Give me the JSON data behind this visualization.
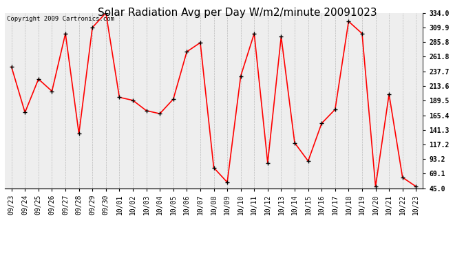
{
  "title": "Solar Radiation Avg per Day W/m2/minute 20091023",
  "copyright_text": "Copyright 2009 Cartronics.com",
  "labels": [
    "09/23",
    "09/24",
    "09/25",
    "09/26",
    "09/27",
    "09/28",
    "09/29",
    "09/30",
    "10/01",
    "10/02",
    "10/03",
    "10/04",
    "10/05",
    "10/06",
    "10/07",
    "10/08",
    "10/09",
    "10/10",
    "10/11",
    "10/12",
    "10/13",
    "10/14",
    "10/15",
    "10/16",
    "10/17",
    "10/18",
    "10/19",
    "10/20",
    "10/21",
    "10/22",
    "10/23"
  ],
  "values": [
    245.0,
    170.0,
    225.0,
    205.0,
    300.0,
    135.0,
    310.0,
    334.0,
    195.0,
    190.0,
    173.0,
    168.0,
    192.0,
    270.0,
    285.0,
    79.0,
    55.0,
    230.0,
    300.0,
    87.0,
    295.0,
    120.0,
    90.0,
    152.0,
    175.0,
    320.0,
    300.0,
    48.0,
    200.0,
    63.0,
    48.0
  ],
  "line_color": "#ff0000",
  "marker_color": "#000000",
  "bg_color": "#ffffff",
  "plot_bg_color": "#eeeeee",
  "grid_color": "#bbbbbb",
  "yticks": [
    45.0,
    69.1,
    93.2,
    117.2,
    141.3,
    165.4,
    189.5,
    213.6,
    237.7,
    261.8,
    285.8,
    309.9,
    334.0
  ],
  "ylim": [
    45.0,
    334.0
  ],
  "title_fontsize": 11,
  "tick_fontsize": 7,
  "copyright_fontsize": 6.5
}
